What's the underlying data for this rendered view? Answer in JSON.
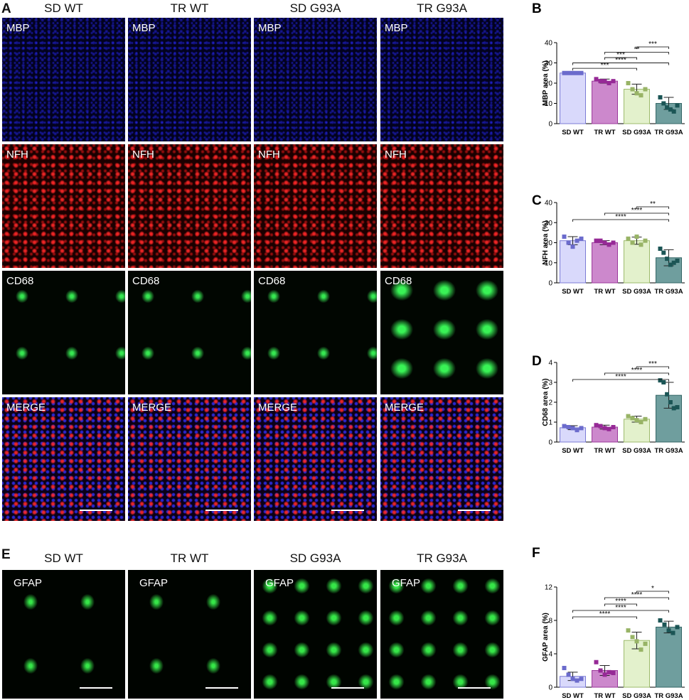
{
  "figure": {
    "A": {
      "letter": "A",
      "columns": [
        "SD WT",
        "TR WT",
        "SD G93A",
        "TR G93A"
      ],
      "rows": [
        "MBP",
        "NFH",
        "CD68",
        "MERGE"
      ]
    },
    "E": {
      "letter": "E",
      "columns": [
        "SD WT",
        "TR WT",
        "SD G93A",
        "TR G93A"
      ],
      "stain": "GFAP"
    }
  },
  "chart_data": [
    {
      "type": "bar",
      "panel": "B",
      "ylabel": "MBP area (%)",
      "categories": [
        "SD WT",
        "TR WT",
        "SD G93A",
        "TR G93A"
      ],
      "values": [
        25,
        21,
        17,
        10
      ],
      "errors": [
        0.5,
        1,
        2.5,
        3
      ],
      "points": [
        [
          25,
          25,
          25,
          25,
          25
        ],
        [
          22,
          21,
          21,
          20,
          21
        ],
        [
          20,
          17,
          15,
          14,
          17
        ],
        [
          13,
          10,
          8,
          7,
          6,
          9
        ]
      ],
      "ylim": [
        0,
        40
      ],
      "yticks": [
        0,
        10,
        20,
        30,
        40
      ],
      "fill_colors": [
        "#d9d9fb",
        "#cc88cc",
        "#e3f1cc",
        "#6f9e9e"
      ],
      "edge_colors": [
        "#7c7cd6",
        "#9b3a9b",
        "#9dbb6c",
        "#356767"
      ],
      "point_colors": [
        "#6b6bcc",
        "#962996",
        "#98b466",
        "#1b5555"
      ],
      "brackets": [
        {
          "pair": [
            "SD WT",
            "SD G93A"
          ],
          "label": "***"
        },
        {
          "pair": [
            "SD WT",
            "TR G93A"
          ],
          "label": "****"
        },
        {
          "pair": [
            "TR WT",
            "SD G93A"
          ],
          "label": "***"
        },
        {
          "pair": [
            "TR WT",
            "TR G93A"
          ],
          "label": "**"
        },
        {
          "pair": [
            "SD G93A",
            "TR G93A"
          ],
          "label": "***"
        }
      ]
    },
    {
      "type": "bar",
      "panel": "C",
      "ylabel": "NFH area  (%)",
      "categories": [
        "SD WT",
        "TR WT",
        "SD G93A",
        "TR G93A"
      ],
      "values": [
        21,
        20,
        21,
        12.5
      ],
      "errors": [
        2,
        1,
        1.8,
        4
      ],
      "points": [
        [
          23,
          20,
          18,
          21,
          22
        ],
        [
          21,
          21,
          20,
          19,
          20
        ],
        [
          22,
          20,
          23,
          19,
          21
        ],
        [
          17,
          15,
          12,
          9,
          10,
          11
        ]
      ],
      "ylim": [
        0,
        40
      ],
      "yticks": [
        0,
        10,
        20,
        30,
        40
      ],
      "fill_colors": [
        "#d9d9fb",
        "#cc88cc",
        "#e3f1cc",
        "#6f9e9e"
      ],
      "edge_colors": [
        "#7c7cd6",
        "#9b3a9b",
        "#9dbb6c",
        "#356767"
      ],
      "point_colors": [
        "#6b6bcc",
        "#962996",
        "#98b466",
        "#1b5555"
      ],
      "brackets": [
        {
          "pair": [
            "SD WT",
            "TR G93A"
          ],
          "label": "****"
        },
        {
          "pair": [
            "TR WT",
            "TR G93A"
          ],
          "label": "****"
        },
        {
          "pair": [
            "SD G93A",
            "TR G93A"
          ],
          "label": "**"
        }
      ]
    },
    {
      "type": "bar",
      "panel": "D",
      "ylabel": "CD68 area (%)",
      "categories": [
        "SD WT",
        "TR WT",
        "SD G93A",
        "TR G93A"
      ],
      "values": [
        0.72,
        0.75,
        1.15,
        2.35
      ],
      "errors": [
        0.1,
        0.1,
        0.15,
        0.65
      ],
      "points": [
        [
          0.8,
          0.75,
          0.7,
          0.6,
          0.7
        ],
        [
          0.85,
          0.8,
          0.7,
          0.65,
          0.75
        ],
        [
          1.3,
          1.2,
          1.1,
          1.0,
          1.15
        ],
        [
          3.1,
          3.0,
          2.4,
          2.0,
          1.7,
          1.75
        ]
      ],
      "ylim": [
        0,
        4
      ],
      "yticks": [
        0,
        1,
        2,
        3,
        4
      ],
      "fill_colors": [
        "#d9d9fb",
        "#cc88cc",
        "#e3f1cc",
        "#6f9e9e"
      ],
      "edge_colors": [
        "#7c7cd6",
        "#9b3a9b",
        "#9dbb6c",
        "#356767"
      ],
      "point_colors": [
        "#6b6bcc",
        "#962996",
        "#98b466",
        "#1b5555"
      ],
      "brackets": [
        {
          "pair": [
            "SD WT",
            "TR G93A"
          ],
          "label": "****"
        },
        {
          "pair": [
            "TR WT",
            "TR G93A"
          ],
          "label": "****"
        },
        {
          "pair": [
            "SD G93A",
            "TR G93A"
          ],
          "label": "***"
        }
      ]
    },
    {
      "type": "bar",
      "panel": "F",
      "ylabel": "GFAP area (%)",
      "categories": [
        "SD WT",
        "TR WT",
        "SD G93A",
        "TR G93A"
      ],
      "values": [
        1.3,
        2.0,
        5.6,
        7.2
      ],
      "errors": [
        0.5,
        0.6,
        1,
        0.7
      ],
      "points": [
        [
          2.3,
          1.5,
          1.0,
          0.8,
          1.0
        ],
        [
          3.0,
          2.0,
          1.5,
          1.8,
          1.7
        ],
        [
          6.8,
          6.0,
          5.5,
          4.5,
          5.2
        ],
        [
          8.0,
          7.5,
          6.8,
          6.5,
          7.2
        ]
      ],
      "ylim": [
        0,
        12
      ],
      "yticks": [
        0,
        4,
        8,
        12
      ],
      "fill_colors": [
        "#d9d9fb",
        "#cc88cc",
        "#e3f1cc",
        "#6f9e9e"
      ],
      "edge_colors": [
        "#7c7cd6",
        "#9b3a9b",
        "#9dbb6c",
        "#356767"
      ],
      "point_colors": [
        "#6b6bcc",
        "#962996",
        "#98b466",
        "#1b5555"
      ],
      "brackets": [
        {
          "pair": [
            "SD WT",
            "SD G93A"
          ],
          "label": "****"
        },
        {
          "pair": [
            "SD WT",
            "TR G93A"
          ],
          "label": "****"
        },
        {
          "pair": [
            "TR WT",
            "SD G93A"
          ],
          "label": "****"
        },
        {
          "pair": [
            "TR WT",
            "TR G93A"
          ],
          "label": "****"
        },
        {
          "pair": [
            "SD G93A",
            "TR G93A"
          ],
          "label": "*"
        }
      ]
    }
  ]
}
